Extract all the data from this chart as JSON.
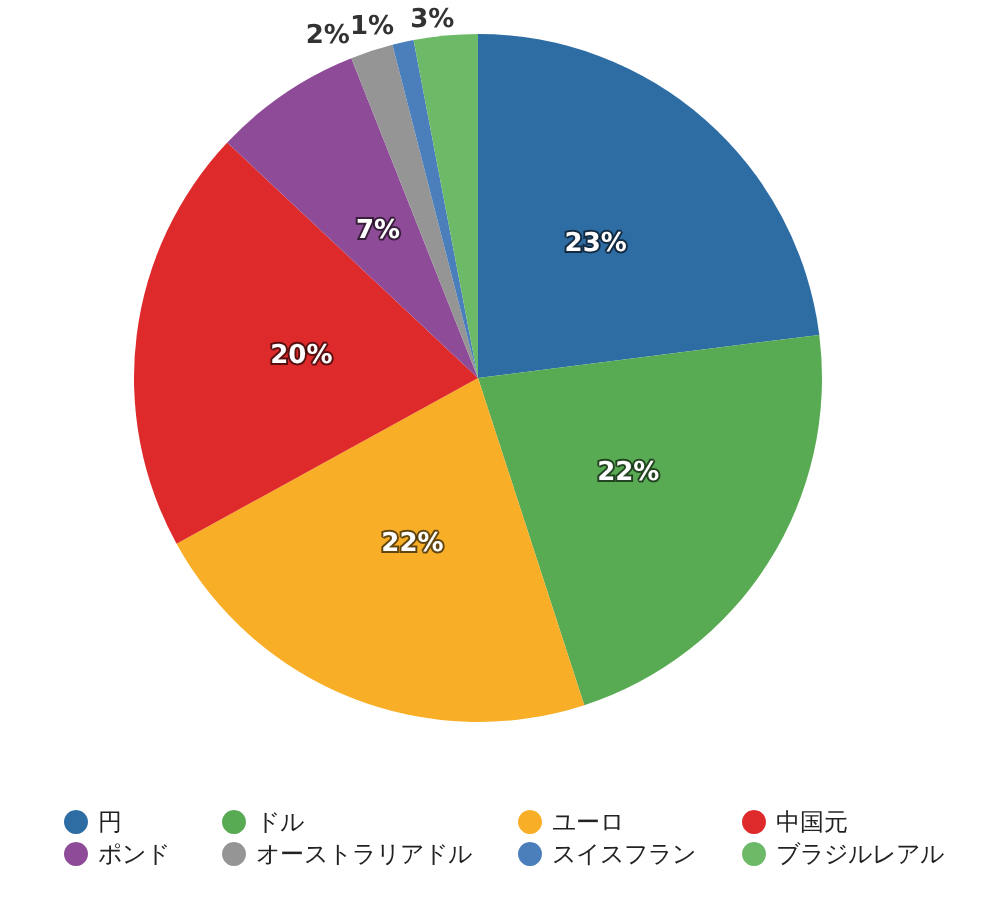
{
  "chart_data": {
    "type": "pie",
    "categories": [
      "円",
      "ドル",
      "ユーロ",
      "中国元",
      "ポンド",
      "オーストラリアドル",
      "スイスフラン",
      "ブラジルレアル"
    ],
    "values": [
      23,
      22,
      22,
      20,
      7,
      2,
      1,
      3
    ],
    "colors": [
      "#2e6ca4",
      "#58ab52",
      "#f8ae27",
      "#df2a2b",
      "#8e4b97",
      "#959595",
      "#4a7fbb",
      "#6cb967"
    ],
    "value_labels": [
      "23%",
      "22%",
      "22%",
      "20%",
      "7%",
      "2%",
      "1%",
      "3%"
    ],
    "legend": "bottom"
  }
}
